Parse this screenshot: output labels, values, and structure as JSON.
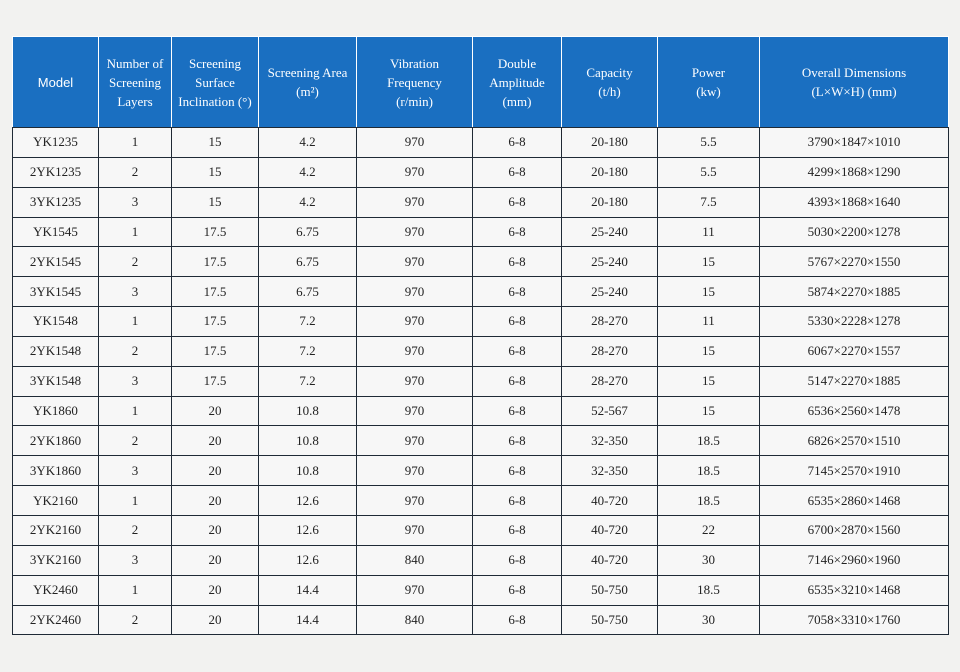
{
  "headers": [
    {
      "lines": [
        "Model"
      ]
    },
    {
      "lines": [
        "Number of",
        "Screening",
        "Layers"
      ]
    },
    {
      "lines": [
        "Screening",
        "Surface",
        "Inclination (°)"
      ]
    },
    {
      "lines": [
        "Screening Area",
        "(m²)"
      ]
    },
    {
      "lines": [
        "Vibration",
        "Frequency",
        "(r/min)"
      ]
    },
    {
      "lines": [
        "Double",
        "Amplitude",
        "(mm)"
      ]
    },
    {
      "lines": [
        "Capacity",
        "(t/h)"
      ]
    },
    {
      "lines": [
        "Power",
        "(kw)"
      ]
    },
    {
      "lines": [
        "Overall Dimensions",
        "(L×W×H)  (mm)"
      ]
    }
  ],
  "rows": [
    [
      "YK1235",
      "1",
      "15",
      "4.2",
      "970",
      "6-8",
      "20-180",
      "5.5",
      "3790×1847×1010"
    ],
    [
      "2YK1235",
      "2",
      "15",
      "4.2",
      "970",
      "6-8",
      "20-180",
      "5.5",
      "4299×1868×1290"
    ],
    [
      "3YK1235",
      "3",
      "15",
      "4.2",
      "970",
      "6-8",
      "20-180",
      "7.5",
      "4393×1868×1640"
    ],
    [
      "YK1545",
      "1",
      "17.5",
      "6.75",
      "970",
      "6-8",
      "25-240",
      "11",
      "5030×2200×1278"
    ],
    [
      "2YK1545",
      "2",
      "17.5",
      "6.75",
      "970",
      "6-8",
      "25-240",
      "15",
      "5767×2270×1550"
    ],
    [
      "3YK1545",
      "3",
      "17.5",
      "6.75",
      "970",
      "6-8",
      "25-240",
      "15",
      "5874×2270×1885"
    ],
    [
      "YK1548",
      "1",
      "17.5",
      "7.2",
      "970",
      "6-8",
      "28-270",
      "11",
      "5330×2228×1278"
    ],
    [
      "2YK1548",
      "2",
      "17.5",
      "7.2",
      "970",
      "6-8",
      "28-270",
      "15",
      "6067×2270×1557"
    ],
    [
      "3YK1548",
      "3",
      "17.5",
      "7.2",
      "970",
      "6-8",
      "28-270",
      "15",
      "5147×2270×1885"
    ],
    [
      "YK1860",
      "1",
      "20",
      "10.8",
      "970",
      "6-8",
      "52-567",
      "15",
      "6536×2560×1478"
    ],
    [
      "2YK1860",
      "2",
      "20",
      "10.8",
      "970",
      "6-8",
      "32-350",
      "18.5",
      "6826×2570×1510"
    ],
    [
      "3YK1860",
      "3",
      "20",
      "10.8",
      "970",
      "6-8",
      "32-350",
      "18.5",
      "7145×2570×1910"
    ],
    [
      "YK2160",
      "1",
      "20",
      "12.6",
      "970",
      "6-8",
      "40-720",
      "18.5",
      "6535×2860×1468"
    ],
    [
      "2YK2160",
      "2",
      "20",
      "12.6",
      "970",
      "6-8",
      "40-720",
      "22",
      "6700×2870×1560"
    ],
    [
      "3YK2160",
      "3",
      "20",
      "12.6",
      "840",
      "6-8",
      "40-720",
      "30",
      "7146×2960×1960"
    ],
    [
      "YK2460",
      "1",
      "20",
      "14.4",
      "970",
      "6-8",
      "50-750",
      "18.5",
      "6535×3210×1468"
    ],
    [
      "2YK2460",
      "2",
      "20",
      "14.4",
      "840",
      "6-8",
      "50-750",
      "30",
      "7058×3310×1760"
    ]
  ]
}
